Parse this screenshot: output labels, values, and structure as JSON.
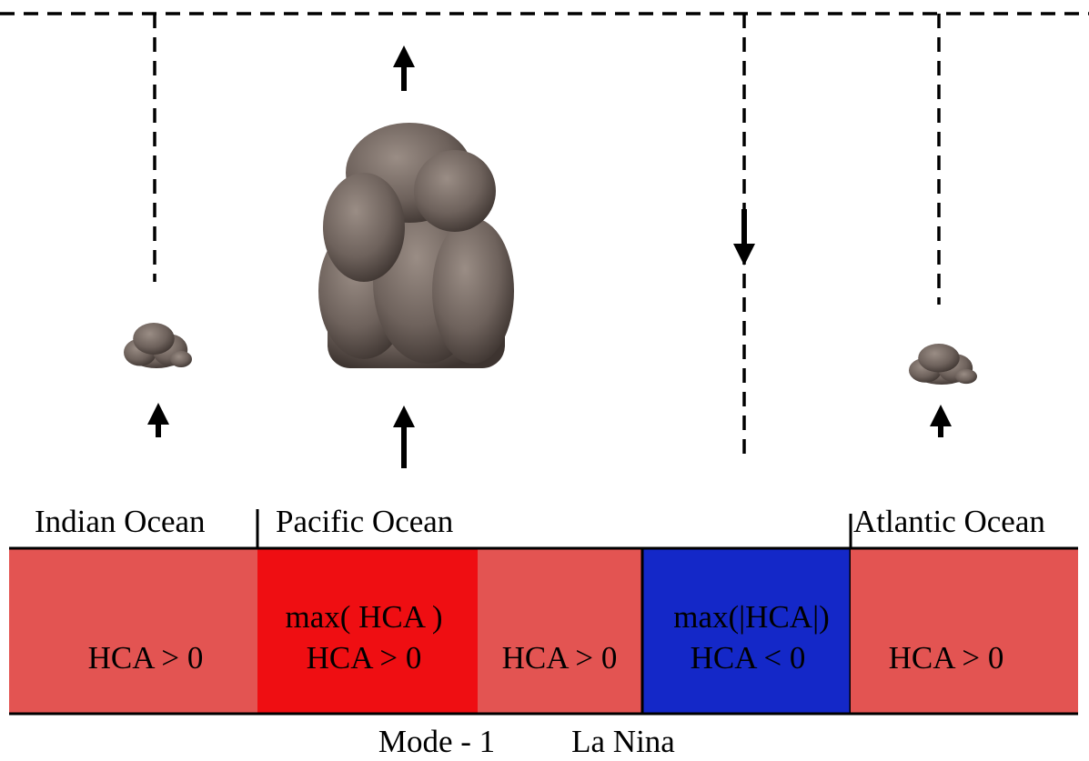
{
  "labels": {
    "indian": "Indian Ocean",
    "pacific": "Pacific Ocean",
    "atlantic": "Atlantic Ocean"
  },
  "boxes": [
    {
      "lines": [
        "HCA > 0"
      ]
    },
    {
      "lines": [
        "max( HCA )",
        "HCA > 0"
      ]
    },
    {
      "lines": [
        "HCA > 0"
      ]
    },
    {
      "lines": [
        "max(|HCA|)",
        "HCA < 0"
      ]
    },
    {
      "lines": [
        "HCA > 0"
      ]
    }
  ],
  "caption": {
    "mode": "Mode - 1",
    "phase": "La Nina"
  }
}
